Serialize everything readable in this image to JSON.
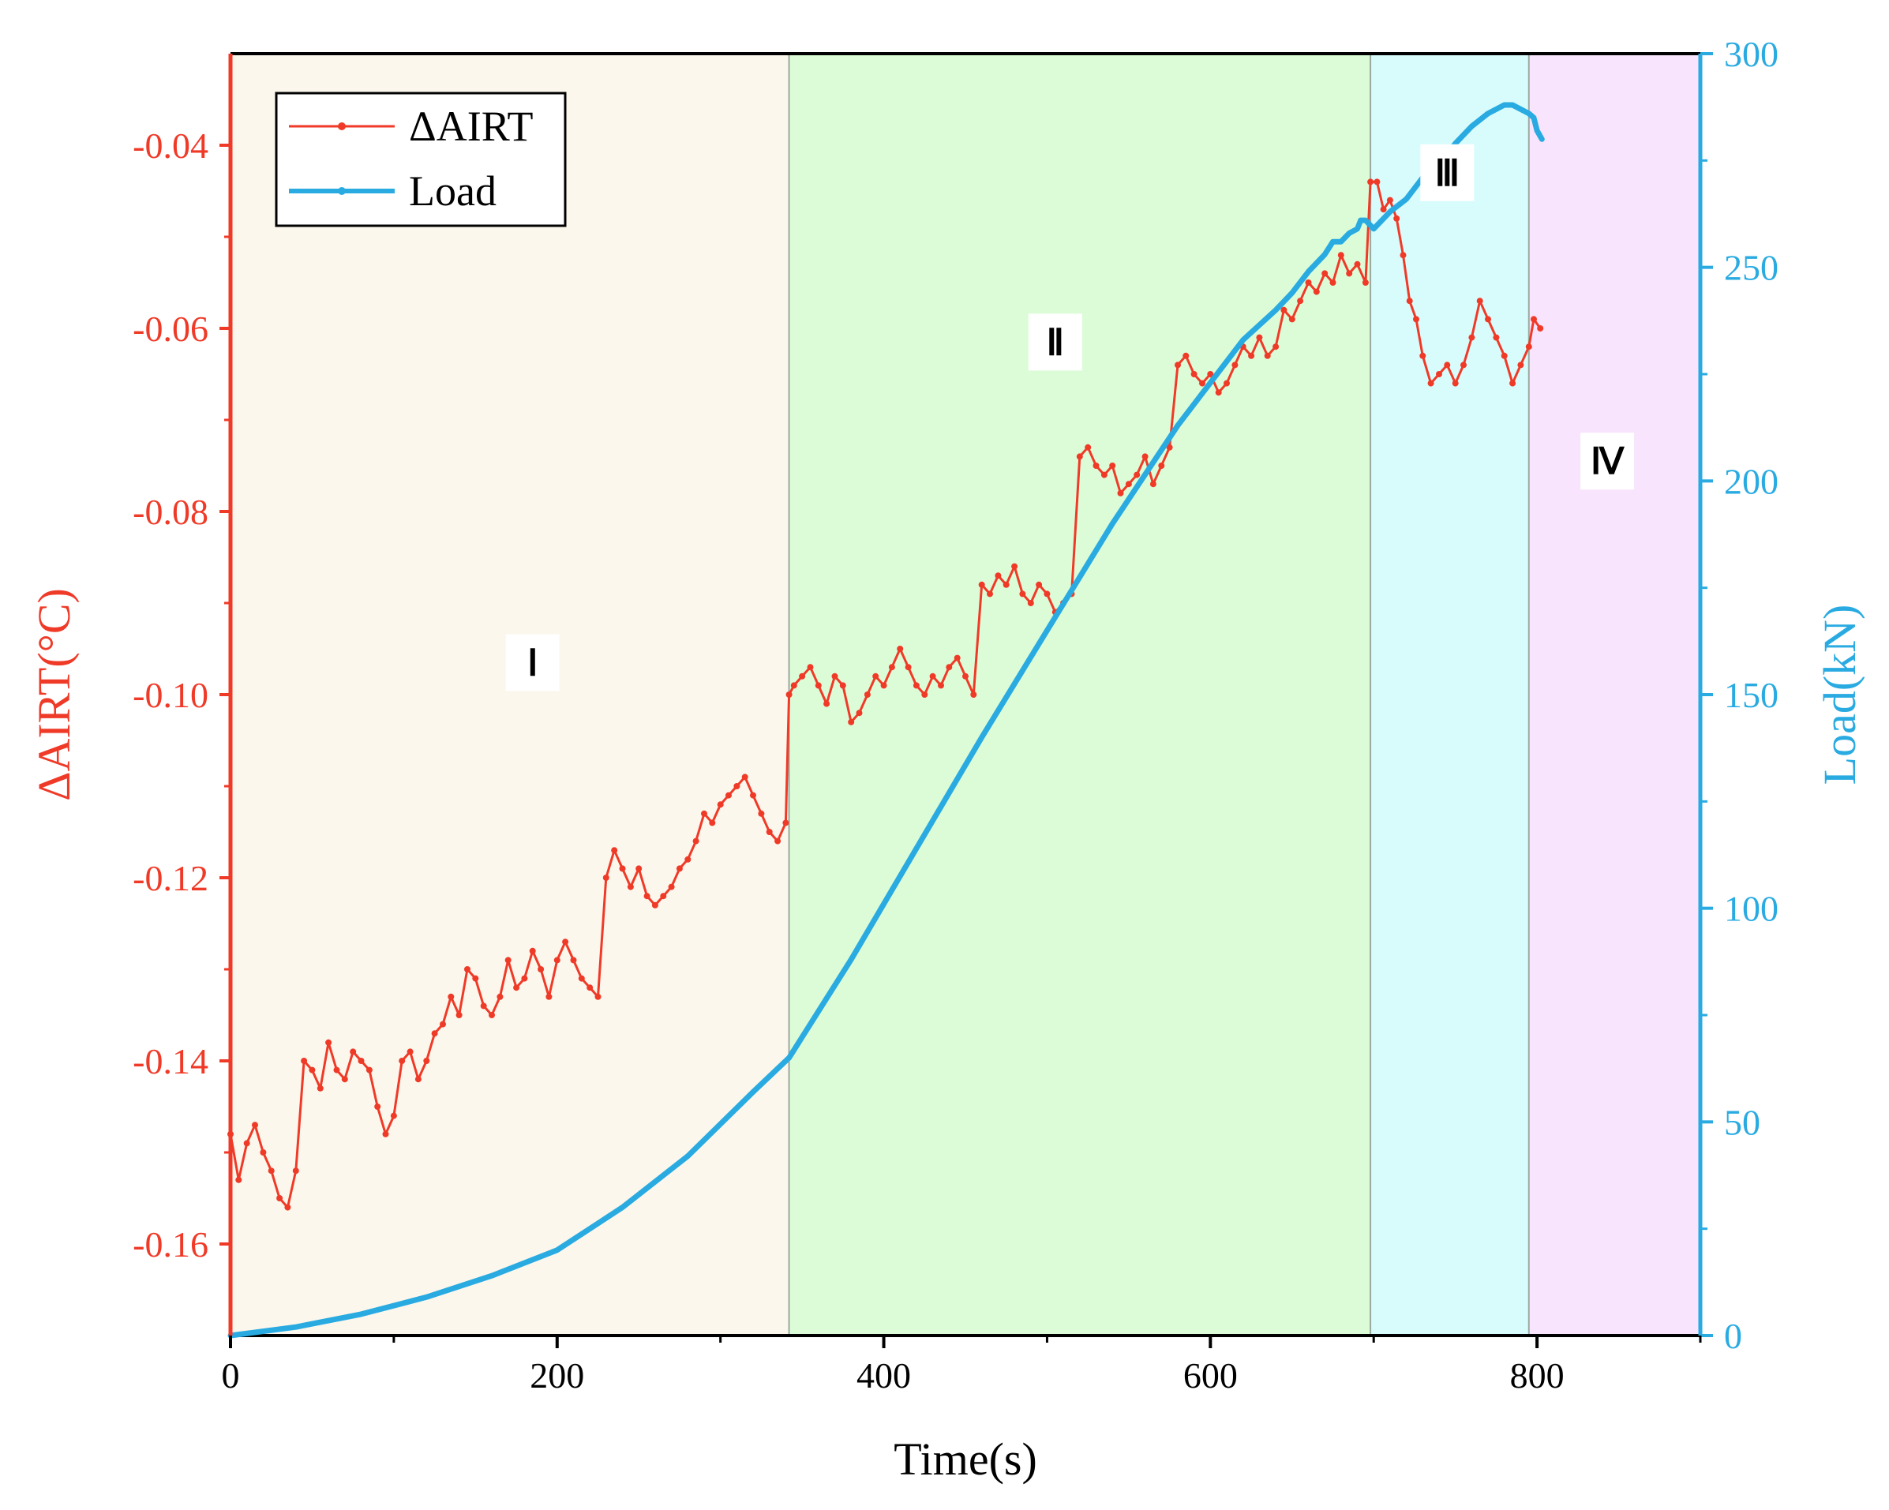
{
  "chart_data": {
    "type": "line",
    "title": "",
    "xlabel": "Time(s)",
    "ylabel_left": "ΔAIRT(°C)",
    "ylabel_right": "Load(kN)",
    "xlim": [
      0,
      900
    ],
    "ylim_left": [
      -0.17,
      -0.03
    ],
    "ylim_right": [
      0,
      300
    ],
    "x_ticks": [
      0,
      200,
      400,
      600,
      800
    ],
    "y_left_ticks": [
      -0.16,
      -0.14,
      -0.12,
      -0.1,
      -0.08,
      -0.06,
      -0.04
    ],
    "y_right_ticks": [
      0,
      50,
      100,
      150,
      200,
      250,
      300
    ],
    "y_left_tick_labels": [
      "-0.16",
      "-0.14",
      "-0.12",
      "-0.10",
      "-0.08",
      "-0.06",
      "-0.04"
    ],
    "legend": {
      "placement": "top-left",
      "entries": [
        "ΔAIRT",
        "Load"
      ]
    },
    "stages": [
      {
        "label": "Ⅰ",
        "x_start": 0,
        "x_end": 342,
        "color": "#fbf7ec",
        "label_x": 185,
        "label_y": -0.0965
      },
      {
        "label": "Ⅱ",
        "x_start": 342,
        "x_end": 698,
        "color": "#dcfcd8",
        "label_x": 505,
        "label_y": -0.0615
      },
      {
        "label": "Ⅲ",
        "x_start": 698,
        "x_end": 795,
        "color": "#d8fcfc",
        "label_x": 745,
        "label_y": -0.043
      },
      {
        "label": "Ⅳ",
        "x_start": 795,
        "x_end": 900,
        "color": "#f8e4fc",
        "label_x": 843,
        "label_y": -0.0745
      }
    ],
    "series": [
      {
        "name": "ΔAIRT",
        "axis": "left",
        "color": "#f03a28",
        "x": [
          0,
          5,
          10,
          15,
          20,
          25,
          30,
          35,
          40,
          45,
          50,
          55,
          60,
          65,
          70,
          75,
          80,
          85,
          90,
          95,
          100,
          105,
          110,
          115,
          120,
          125,
          130,
          135,
          140,
          145,
          150,
          155,
          160,
          165,
          170,
          175,
          180,
          185,
          190,
          195,
          200,
          205,
          210,
          215,
          220,
          225,
          230,
          235,
          240,
          245,
          250,
          255,
          260,
          265,
          270,
          275,
          280,
          285,
          290,
          295,
          300,
          305,
          310,
          315,
          320,
          325,
          330,
          335,
          340,
          342,
          345,
          350,
          355,
          360,
          365,
          370,
          375,
          380,
          385,
          390,
          395,
          400,
          405,
          410,
          415,
          420,
          425,
          430,
          435,
          440,
          445,
          450,
          455,
          460,
          465,
          470,
          475,
          480,
          485,
          490,
          495,
          500,
          505,
          510,
          515,
          520,
          525,
          530,
          535,
          540,
          545,
          550,
          555,
          560,
          565,
          570,
          575,
          580,
          585,
          590,
          595,
          600,
          605,
          610,
          615,
          620,
          625,
          630,
          635,
          640,
          645,
          650,
          655,
          660,
          665,
          670,
          675,
          680,
          685,
          690,
          695,
          698,
          702,
          706,
          710,
          714,
          718,
          722,
          726,
          730,
          735,
          740,
          745,
          750,
          755,
          760,
          765,
          770,
          775,
          780,
          785,
          790,
          795,
          798,
          802
        ],
        "values": [
          -0.148,
          -0.153,
          -0.149,
          -0.147,
          -0.15,
          -0.152,
          -0.155,
          -0.156,
          -0.152,
          -0.14,
          -0.141,
          -0.143,
          -0.138,
          -0.141,
          -0.142,
          -0.139,
          -0.14,
          -0.141,
          -0.145,
          -0.148,
          -0.146,
          -0.14,
          -0.139,
          -0.142,
          -0.14,
          -0.137,
          -0.136,
          -0.133,
          -0.135,
          -0.13,
          -0.131,
          -0.134,
          -0.135,
          -0.133,
          -0.129,
          -0.132,
          -0.131,
          -0.128,
          -0.13,
          -0.133,
          -0.129,
          -0.127,
          -0.129,
          -0.131,
          -0.132,
          -0.133,
          -0.12,
          -0.117,
          -0.119,
          -0.121,
          -0.119,
          -0.122,
          -0.123,
          -0.122,
          -0.121,
          -0.119,
          -0.118,
          -0.116,
          -0.113,
          -0.114,
          -0.112,
          -0.111,
          -0.11,
          -0.109,
          -0.111,
          -0.113,
          -0.115,
          -0.116,
          -0.114,
          -0.1,
          -0.099,
          -0.098,
          -0.097,
          -0.099,
          -0.101,
          -0.098,
          -0.099,
          -0.103,
          -0.102,
          -0.1,
          -0.098,
          -0.099,
          -0.097,
          -0.095,
          -0.097,
          -0.099,
          -0.1,
          -0.098,
          -0.099,
          -0.097,
          -0.096,
          -0.098,
          -0.1,
          -0.088,
          -0.089,
          -0.087,
          -0.088,
          -0.086,
          -0.089,
          -0.09,
          -0.088,
          -0.089,
          -0.091,
          -0.09,
          -0.089,
          -0.074,
          -0.073,
          -0.075,
          -0.076,
          -0.075,
          -0.078,
          -0.077,
          -0.076,
          -0.074,
          -0.077,
          -0.075,
          -0.073,
          -0.064,
          -0.063,
          -0.065,
          -0.066,
          -0.065,
          -0.067,
          -0.066,
          -0.064,
          -0.062,
          -0.063,
          -0.061,
          -0.063,
          -0.062,
          -0.058,
          -0.059,
          -0.057,
          -0.055,
          -0.056,
          -0.054,
          -0.055,
          -0.052,
          -0.054,
          -0.053,
          -0.055,
          -0.044,
          -0.044,
          -0.047,
          -0.046,
          -0.048,
          -0.052,
          -0.057,
          -0.059,
          -0.063,
          -0.066,
          -0.065,
          -0.064,
          -0.066,
          -0.064,
          -0.061,
          -0.057,
          -0.059,
          -0.061,
          -0.063,
          -0.066,
          -0.064,
          -0.062,
          -0.059,
          -0.06
        ],
        "label": "ΔAIRT"
      },
      {
        "name": "Load",
        "axis": "right",
        "color": "#29abe2",
        "x": [
          0,
          40,
          80,
          120,
          160,
          200,
          240,
          280,
          320,
          342,
          380,
          420,
          460,
          500,
          540,
          580,
          620,
          640,
          650,
          660,
          670,
          675,
          680,
          685,
          690,
          692,
          695,
          700,
          710,
          720,
          730,
          740,
          750,
          760,
          770,
          780,
          785,
          790,
          795,
          798,
          800,
          803
        ],
        "values": [
          0,
          2,
          5,
          9,
          14,
          20,
          30,
          42,
          57,
          65,
          88,
          114,
          140,
          165,
          190,
          213,
          233,
          240,
          244,
          249,
          253,
          256,
          256,
          258,
          259,
          261,
          261,
          259,
          263,
          266,
          271,
          274,
          279,
          283,
          286,
          288,
          288,
          287,
          286,
          285,
          282,
          280
        ],
        "label": "Load"
      }
    ]
  }
}
